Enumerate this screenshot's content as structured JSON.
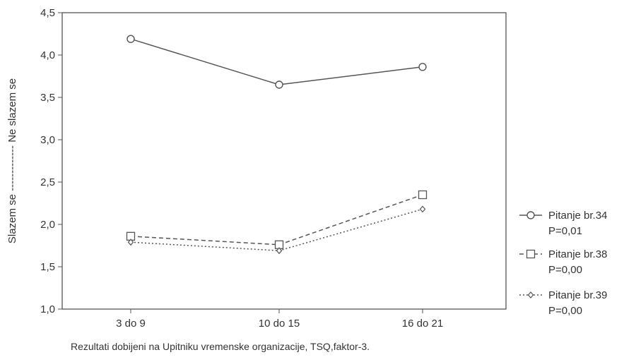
{
  "chart_data": {
    "type": "line",
    "title": "",
    "xlabel": "",
    "ylabel": "Slazem se ------------- Ne slazem se",
    "caption": "Rezultati dobijeni na Upitniku vremenske organizacije, TSQ,faktor-3.",
    "categories": [
      "3 do 9",
      "10 do 15",
      "16 do 21"
    ],
    "ylim": [
      1.0,
      4.5
    ],
    "yticks": [
      "1,0",
      "1,5",
      "2,0",
      "2,5",
      "3,0",
      "3,5",
      "4,0",
      "4,5"
    ],
    "grid": false,
    "legend_position": "right",
    "series": [
      {
        "name": "Pitanje br.34",
        "pvalue": "P=0,01",
        "marker": "circle",
        "line": "solid",
        "values": [
          4.19,
          3.65,
          3.86
        ]
      },
      {
        "name": "Pitanje br.38",
        "pvalue": "P=0,00",
        "marker": "square",
        "line": "dashed",
        "values": [
          1.86,
          1.76,
          2.35
        ]
      },
      {
        "name": "Pitanje br.39",
        "pvalue": "P=0,00",
        "marker": "diamond",
        "line": "dotted",
        "values": [
          1.79,
          1.69,
          2.18
        ]
      }
    ]
  }
}
